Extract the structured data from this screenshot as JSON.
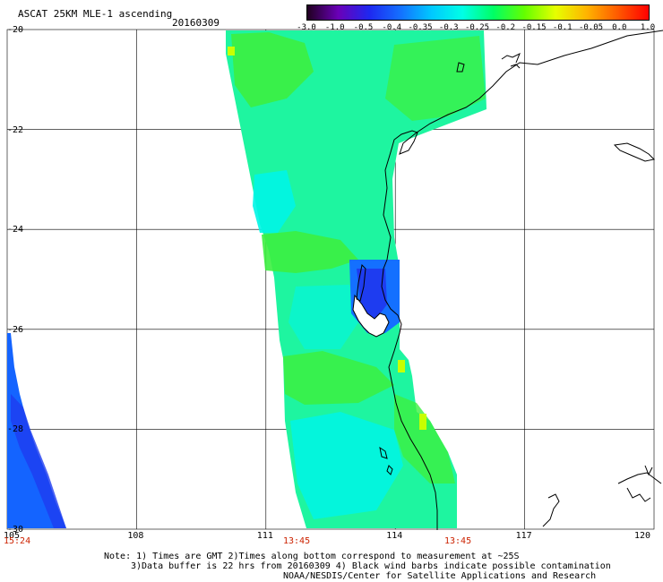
{
  "header": {
    "title": "ASCAT 25KM MLE-1 ascending",
    "date": "20160309"
  },
  "colorbar": {
    "labels": [
      "-3.0",
      "-1.0",
      "-0.5",
      "-0.4",
      "-0.35",
      "-0.3",
      "-0.25",
      "-0.2",
      "-0.15",
      "-0.1",
      "-0.05",
      "0.0",
      "1.0"
    ],
    "colors": [
      "#200020",
      "#6a00b8",
      "#1e28f0",
      "#1470ff",
      "#00c8ff",
      "#00ffe6",
      "#00ff64",
      "#64ff00",
      "#e6ff00",
      "#ffb400",
      "#ff5a00",
      "#ff0000"
    ]
  },
  "axes": {
    "lat_labels": [
      "-20",
      "-22",
      "-24",
      "-26",
      "-28",
      "-30"
    ],
    "lon_labels": [
      "105",
      "108",
      "111",
      "114",
      "117",
      "120"
    ]
  },
  "times": [
    "15:24",
    "13:45",
    "13:45"
  ],
  "notes": [
    "Note: 1) Times are GMT 2)Times along bottom correspond to measurement at ~25S",
    "3)Data buffer is 22 hrs from 20160309 4) Black wind barbs indicate possible contamination",
    "NOAA/NESDIS/Center for Satellite Applications and Research"
  ],
  "map": {
    "lon_range": [
      105,
      120
    ],
    "lat_range": [
      -30,
      -20
    ],
    "grid": true,
    "colors": {
      "main_swath": "#1ef5a0",
      "swath_green": "#3cf040",
      "swath_cyan": "#00f5e6",
      "swath_blue": "#1470ff",
      "left_swath": "#1464ff",
      "coast": "#000000"
    }
  }
}
